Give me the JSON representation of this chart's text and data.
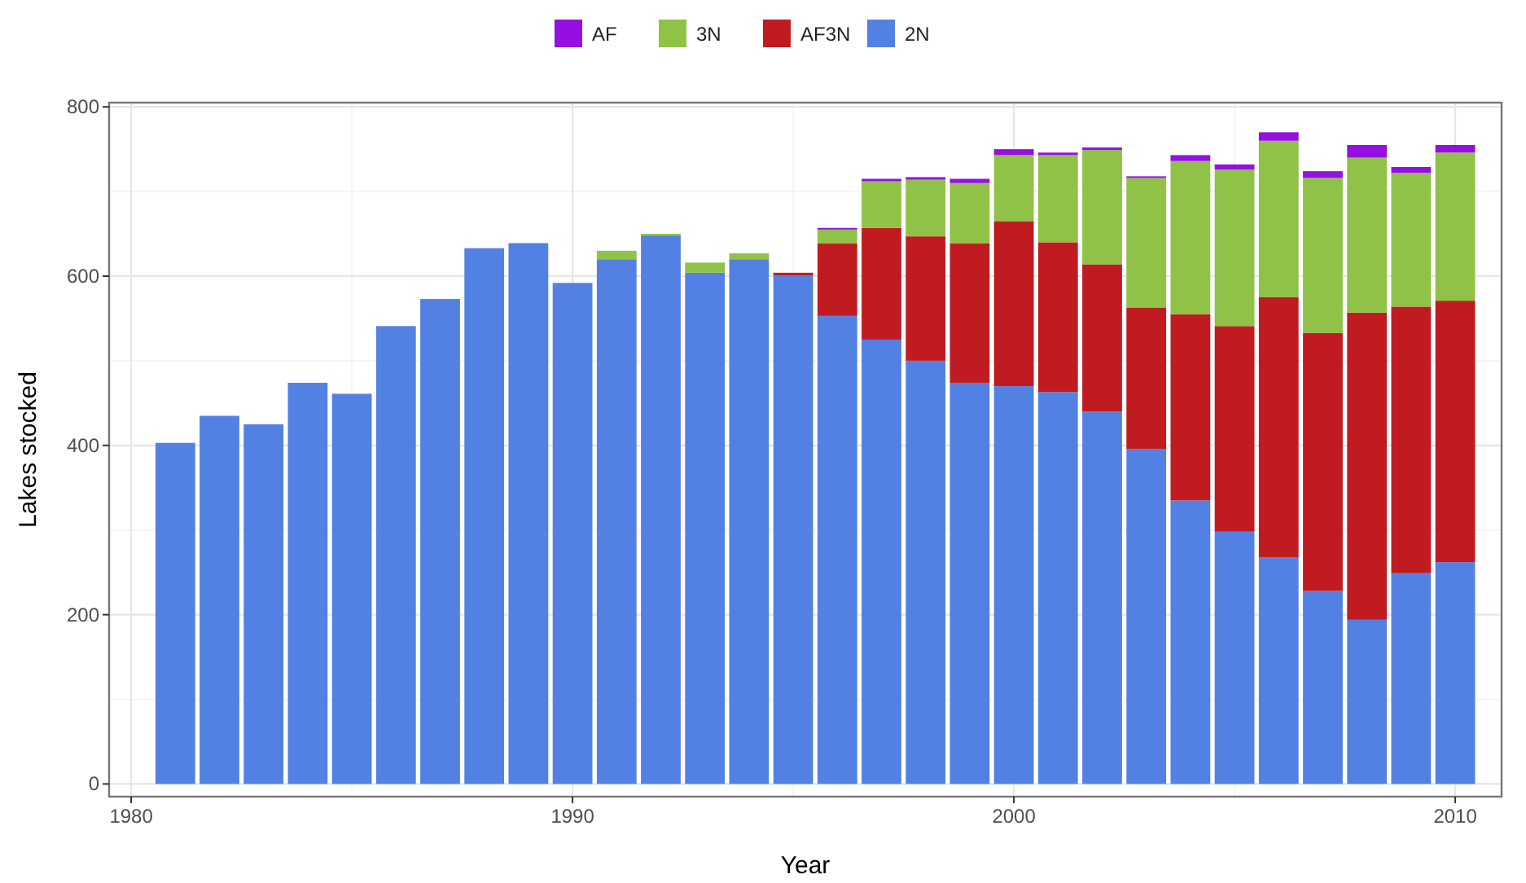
{
  "chart_data": {
    "type": "bar",
    "stacked": true,
    "xlabel": "Year",
    "ylabel": "Lakes stocked",
    "x": [
      1981,
      1982,
      1983,
      1984,
      1985,
      1986,
      1987,
      1988,
      1989,
      1990,
      1991,
      1992,
      1993,
      1994,
      1995,
      1996,
      1997,
      1998,
      1999,
      2000,
      2001,
      2002,
      2003,
      2004,
      2005,
      2006,
      2007,
      2008,
      2009,
      2010
    ],
    "xlim": [
      1979.5,
      2011.05
    ],
    "xticks": [
      1980,
      1990,
      2000,
      2010
    ],
    "ylim": [
      -15,
      805
    ],
    "yticks": [
      0,
      200,
      400,
      600,
      800
    ],
    "grid": true,
    "legend": "top",
    "series": [
      {
        "name": "2N",
        "color": "#5381e3",
        "values": [
          403,
          435,
          425,
          474,
          461,
          541,
          573,
          633,
          639,
          592,
          620,
          648,
          604,
          620,
          601,
          553,
          525,
          500,
          474,
          470,
          463,
          440,
          396,
          335,
          298,
          268,
          228,
          194,
          249,
          262
        ]
      },
      {
        "name": "AF3N",
        "color": "#c11b22",
        "values": [
          null,
          null,
          null,
          null,
          null,
          null,
          null,
          null,
          null,
          null,
          null,
          null,
          null,
          null,
          3,
          86,
          132,
          147,
          165,
          195,
          177,
          174,
          167,
          220,
          243,
          307,
          305,
          363,
          315,
          309
        ]
      },
      {
        "name": "3N",
        "color": "#8fc247",
        "values": [
          null,
          null,
          null,
          null,
          null,
          null,
          null,
          null,
          null,
          null,
          10,
          2,
          12,
          7,
          null,
          16,
          55,
          67,
          71,
          78,
          103,
          135,
          153,
          181,
          185,
          185,
          183,
          183,
          158,
          175
        ]
      },
      {
        "name": "AF",
        "color": "#9510e0",
        "values": [
          null,
          null,
          null,
          null,
          null,
          null,
          null,
          null,
          null,
          null,
          null,
          null,
          null,
          null,
          null,
          2,
          3,
          3,
          5,
          7,
          3,
          3,
          2,
          7,
          6,
          10,
          8,
          15,
          7,
          9
        ]
      }
    ]
  }
}
